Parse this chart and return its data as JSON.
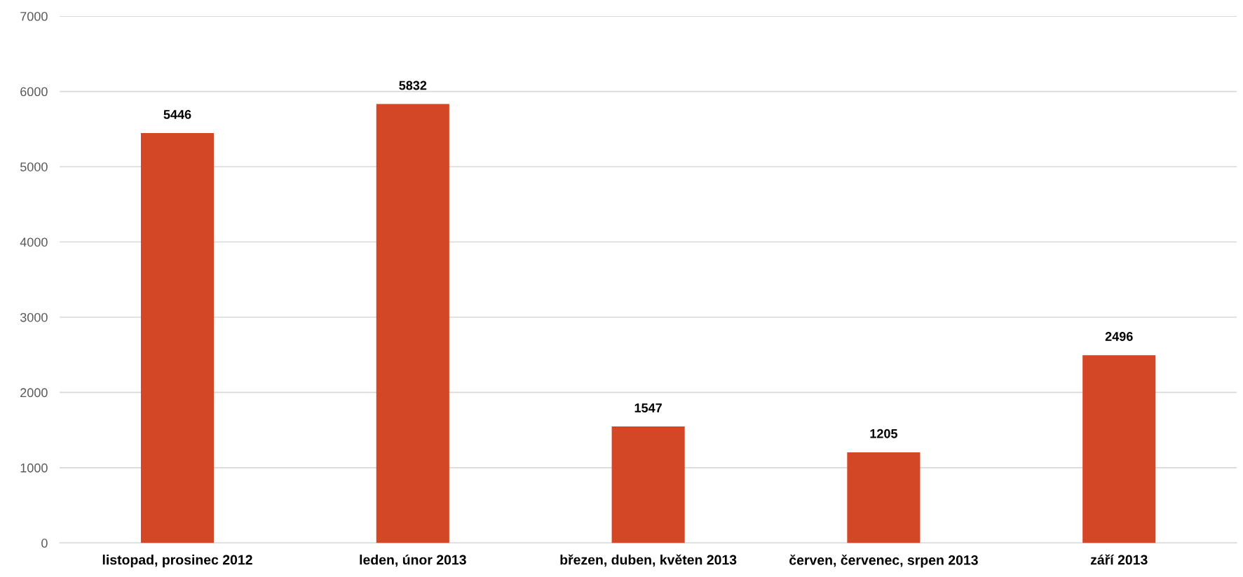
{
  "chart_data": {
    "type": "bar",
    "categories": [
      "listopad, prosinec 2012",
      "leden, únor 2013",
      "březen, duben, květen 2013",
      "červen, červenec, srpen 2013",
      "září 2013"
    ],
    "values": [
      5446,
      5832,
      1547,
      1205,
      2496
    ],
    "color": "#d34727",
    "ylim": [
      0,
      7000
    ],
    "yticks": [
      0,
      1000,
      2000,
      3000,
      4000,
      5000,
      6000,
      7000
    ],
    "grid": "y",
    "data_labels": true,
    "legend": false
  }
}
